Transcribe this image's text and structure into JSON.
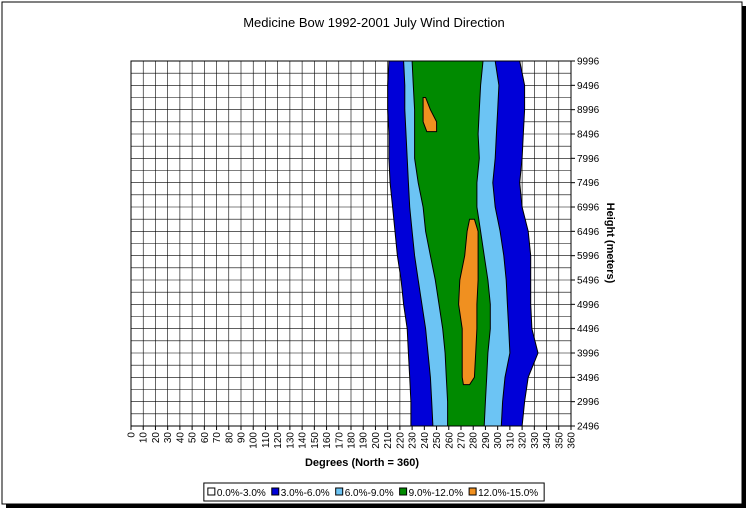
{
  "chart_data": {
    "type": "contour",
    "title": "Medicine Bow 1992-2001 July Wind Direction",
    "xlabel": "Degrees (North = 360)",
    "ylabel": "Height (meters)",
    "xlim": [
      0,
      360
    ],
    "ylim": [
      2496,
      9996
    ],
    "xticks": [
      0,
      10,
      20,
      30,
      40,
      50,
      60,
      70,
      80,
      90,
      100,
      110,
      120,
      130,
      140,
      150,
      160,
      170,
      180,
      190,
      200,
      210,
      220,
      230,
      240,
      250,
      260,
      270,
      280,
      290,
      300,
      310,
      320,
      330,
      340,
      350,
      360
    ],
    "yticks": [
      2496,
      2996,
      3496,
      3996,
      4496,
      4996,
      5496,
      5996,
      6496,
      6996,
      7496,
      7996,
      8496,
      8996,
      9496,
      9996
    ],
    "grid": true,
    "minor_grid": true,
    "legend": "bottom",
    "bands": [
      {
        "name": "0.0%-3.0%",
        "color": "#ffffff"
      },
      {
        "name": "3.0%-6.0%",
        "color": "#0000d8",
        "regions": [
          {
            "heights": [
              2496,
              2996,
              3496,
              3996,
              4496,
              4996,
              5496,
              5996,
              6496,
              6996,
              7496,
              7996,
              8496,
              8996,
              9496,
              9996
            ],
            "left": [
              229,
              229,
              228,
              227,
              226,
              223,
              221,
              218,
              216,
              214,
              212,
              211,
              211,
              210,
              210,
              211
            ],
            "right": [
              320,
              322,
              325,
              333,
              328,
              327,
              327,
              327,
              325,
              320,
              318,
              320,
              321,
              322,
              322,
              318
            ]
          }
        ]
      },
      {
        "name": "6.0%-9.0%",
        "color": "#6cc4f4",
        "regions": [
          {
            "heights": [
              2496,
              2996,
              3496,
              3996,
              4496,
              4996,
              5496,
              5996,
              6496,
              6996,
              7496,
              7996,
              8496,
              8996,
              9496,
              9996
            ],
            "left": [
              247,
              246,
              245,
              243,
              241,
              238,
              235,
              232,
              230,
              228,
              227,
              226,
              225,
              224,
              224,
              223
            ],
            "right": [
              303,
              304,
              306,
              310,
              309,
              308,
              307,
              305,
              302,
              298,
              296,
              298,
              299,
              300,
              301,
              298
            ]
          }
        ]
      },
      {
        "name": "9.0%-12.0%",
        "color": "#008a00",
        "regions": [
          {
            "heights": [
              2496,
              2996,
              3496,
              3996,
              4496,
              4996,
              5496,
              5996,
              6496,
              6996,
              7496,
              7996,
              8496,
              8996,
              9496,
              9996
            ],
            "left": [
              259,
              259,
              258,
              257,
              255,
              252,
              249,
              245,
              241,
              239,
              235,
              232,
              232,
              232,
              231,
              230
            ],
            "right": [
              289,
              290,
              291,
              292,
              294,
              294,
              292,
              289,
              286,
              283,
              283,
              285,
              284,
              285,
              286,
              288
            ]
          }
        ]
      },
      {
        "name": "12.0%-15.0%",
        "color": "#f09020",
        "regions": [
          {
            "heights": [
              3346,
              3496,
              3996,
              4496,
              4996,
              5496,
              5996,
              6496,
              6746
            ],
            "left": [
              272,
              271,
              271,
              271,
              268,
              269,
              273,
              275,
              277
            ],
            "right": [
              277,
              281,
              282,
              283,
              283,
              284,
              284,
              284,
              281
            ]
          },
          {
            "heights": [
              8546,
              8746,
              8996,
              9246
            ],
            "left": [
              242,
              239,
              239,
              239
            ],
            "right": [
              250,
              250,
              245,
              241
            ]
          }
        ]
      }
    ]
  }
}
